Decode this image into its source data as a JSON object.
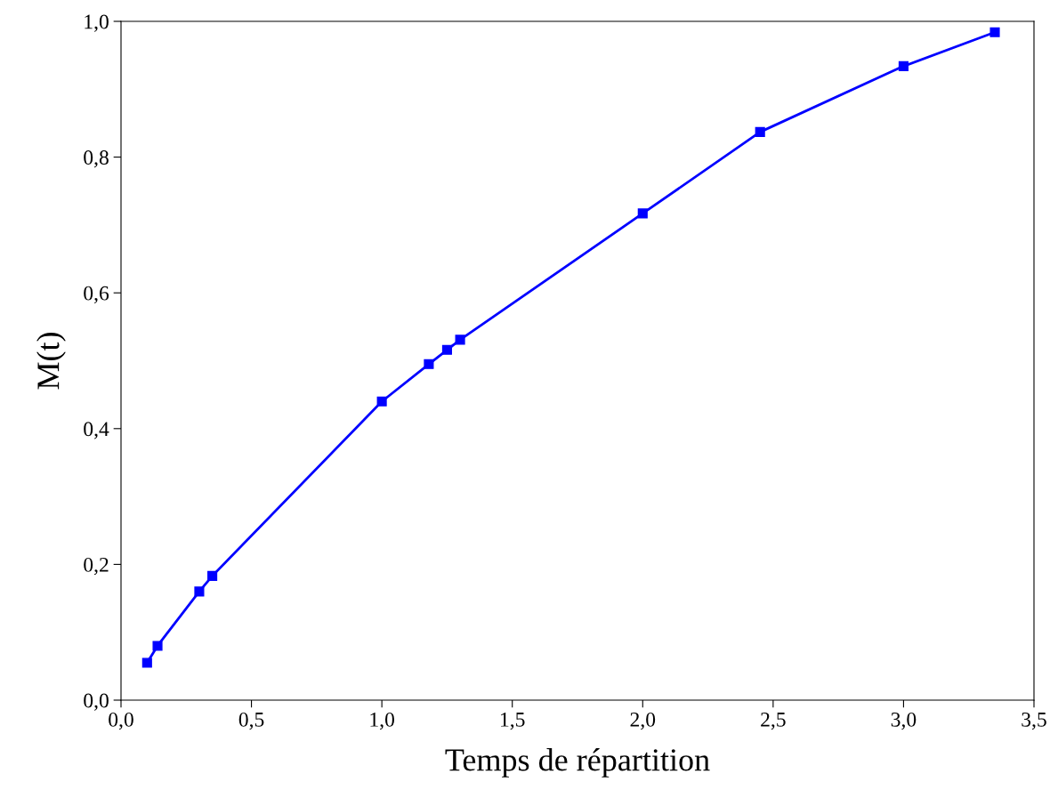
{
  "chart_data": {
    "type": "line",
    "xlabel": "Temps de répartition",
    "ylabel": "M(t)",
    "x": [
      0.1,
      0.14,
      0.3,
      0.35,
      1.0,
      1.18,
      1.25,
      1.3,
      2.0,
      2.45,
      3.0,
      3.35
    ],
    "series": [
      {
        "color": "#0000ff",
        "values": [
          0.055,
          0.08,
          0.16,
          0.183,
          0.44,
          0.495,
          0.516,
          0.531,
          0.717,
          0.837,
          0.934,
          0.984
        ]
      }
    ],
    "xlim": [
      0,
      3.5
    ],
    "ylim": [
      0,
      1.0
    ],
    "xticks": [
      {
        "value": 0,
        "label": "0,0"
      },
      {
        "value": 0.5,
        "label": "0,5"
      },
      {
        "value": 1.0,
        "label": "1,0"
      },
      {
        "value": 1.5,
        "label": "1,5"
      },
      {
        "value": 2.0,
        "label": "2,0"
      },
      {
        "value": 2.5,
        "label": "2,5"
      },
      {
        "value": 3.0,
        "label": "3,0"
      },
      {
        "value": 3.5,
        "label": "3,5"
      }
    ],
    "yticks": [
      {
        "value": 0,
        "label": "0,0"
      },
      {
        "value": 0.2,
        "label": "0,2"
      },
      {
        "value": 0.4,
        "label": "0,4"
      },
      {
        "value": 0.6,
        "label": "0,6"
      },
      {
        "value": 0.8,
        "label": "0,8"
      },
      {
        "value": 1.0,
        "label": "1,0"
      }
    ],
    "grid": false,
    "legend": false,
    "marker": "square",
    "line_style": "solid"
  }
}
